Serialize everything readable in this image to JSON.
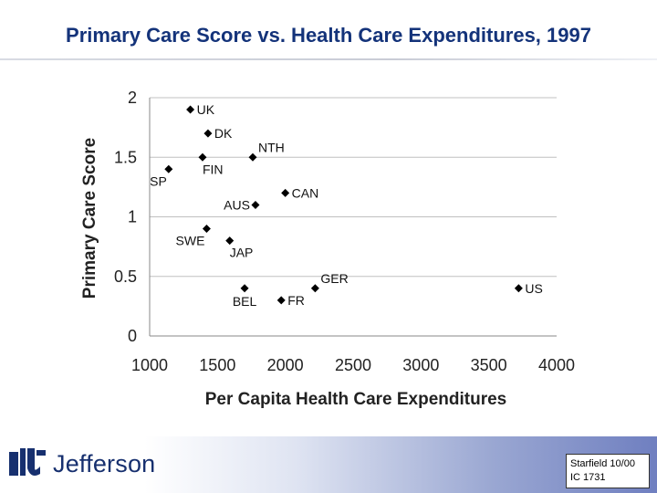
{
  "slide": {
    "title": "Primary Care Score vs. Health Care Expenditures, 1997"
  },
  "footer": {
    "logo_text": "Jefferson",
    "citation_line1": "Starfield 10/00",
    "citation_line2": "IC 1731"
  },
  "chart_data": {
    "type": "scatter",
    "xlabel": "Per Capita Health Care Expenditures",
    "ylabel": "Primary Care Score",
    "xlim": [
      1000,
      4000
    ],
    "ylim": [
      0,
      2
    ],
    "xticks": [
      1000,
      1500,
      2000,
      2500,
      3000,
      3500,
      4000
    ],
    "yticks": [
      0,
      0.5,
      1,
      1.5,
      2
    ],
    "ytick_labels": [
      "0",
      "0.5",
      "1",
      "1.5",
      "2"
    ],
    "grid": "horizontal",
    "marker_color": "#000000",
    "gridline_color": "#c0c0c0",
    "points": [
      {
        "label": "UK",
        "x": 1300,
        "y": 1.9,
        "label_pos": "right"
      },
      {
        "label": "DK",
        "x": 1430,
        "y": 1.7,
        "label_pos": "right"
      },
      {
        "label": "NTH",
        "x": 1760,
        "y": 1.5,
        "label_pos": "upper-right"
      },
      {
        "label": "FIN",
        "x": 1390,
        "y": 1.5,
        "label_pos": "below-right"
      },
      {
        "label": "SP",
        "x": 1140,
        "y": 1.4,
        "label_pos": "below-left"
      },
      {
        "label": "CAN",
        "x": 2000,
        "y": 1.2,
        "label_pos": "right"
      },
      {
        "label": "AUS",
        "x": 1780,
        "y": 1.1,
        "label_pos": "left"
      },
      {
        "label": "SWE",
        "x": 1420,
        "y": 0.9,
        "label_pos": "below-left"
      },
      {
        "label": "JAP",
        "x": 1590,
        "y": 0.8,
        "label_pos": "below-right"
      },
      {
        "label": "GER",
        "x": 2220,
        "y": 0.4,
        "label_pos": "upper-right"
      },
      {
        "label": "US",
        "x": 3720,
        "y": 0.4,
        "label_pos": "right"
      },
      {
        "label": "BEL",
        "x": 1700,
        "y": 0.4,
        "label_pos": "below"
      },
      {
        "label": "FR",
        "x": 1970,
        "y": 0.3,
        "label_pos": "right"
      }
    ]
  }
}
